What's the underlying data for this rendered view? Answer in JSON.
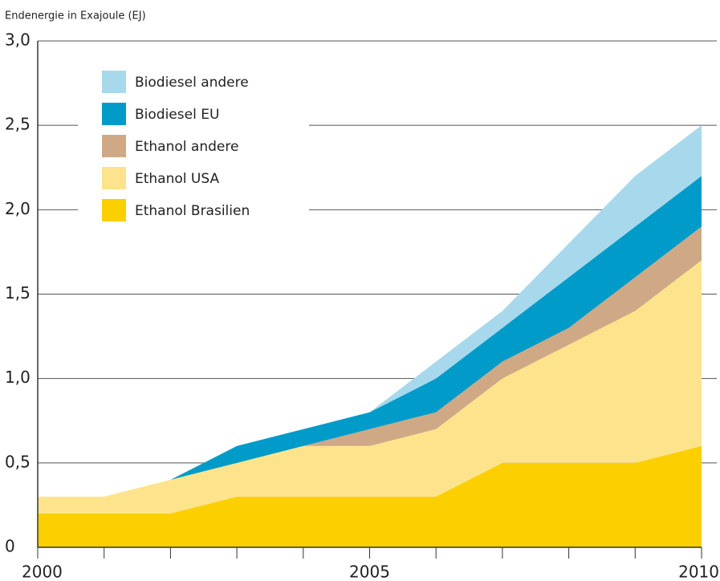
{
  "chart_data": {
    "type": "stacked-area",
    "y_axis_label": "Endenergie in Exajoule (EJ)",
    "x": [
      2000,
      2001,
      2002,
      2003,
      2004,
      2005,
      2006,
      2007,
      2008,
      2009,
      2010
    ],
    "xlim": [
      2000,
      2010
    ],
    "xticks": [
      2000,
      2005,
      2010
    ],
    "ylim": [
      0,
      3
    ],
    "yticks": [
      0,
      {
        "value": 0.5,
        "label": "0,5"
      },
      {
        "value": 1,
        "label": "1,0"
      },
      {
        "value": 1.5,
        "label": "1,5"
      },
      {
        "value": 2,
        "label": "2,0"
      },
      {
        "value": 2.5,
        "label": "2,5"
      },
      {
        "value": 3,
        "label": "3,0"
      }
    ],
    "grid": true,
    "legend": "upper left",
    "series": [
      {
        "name": "Ethanol Brasilien",
        "color": "#fccf00",
        "values": [
          0.2,
          0.2,
          0.2,
          0.3,
          0.3,
          0.3,
          0.3,
          0.5,
          0.5,
          0.5,
          0.6
        ]
      },
      {
        "name": "Ethanol USA",
        "color": "#fde48c",
        "values": [
          0.1,
          0.1,
          0.2,
          0.2,
          0.3,
          0.3,
          0.4,
          0.5,
          0.7,
          0.9,
          1.1
        ]
      },
      {
        "name": "Ethanol andere",
        "color": "#cfa986",
        "values": [
          0,
          0,
          0,
          0,
          0,
          0.1,
          0.1,
          0.1,
          0.1,
          0.2,
          0.2
        ]
      },
      {
        "name": "Biodiesel EU",
        "color": "#009bc8",
        "values": [
          0,
          0,
          0,
          0.1,
          0.1,
          0.1,
          0.2,
          0.2,
          0.3,
          0.3,
          0.3
        ]
      },
      {
        "name": "Biodiesel andere",
        "color": "#a8d8ec",
        "values": [
          0,
          0,
          0,
          0,
          0,
          0,
          0.1,
          0.1,
          0.2,
          0.3,
          0.3
        ]
      }
    ]
  }
}
